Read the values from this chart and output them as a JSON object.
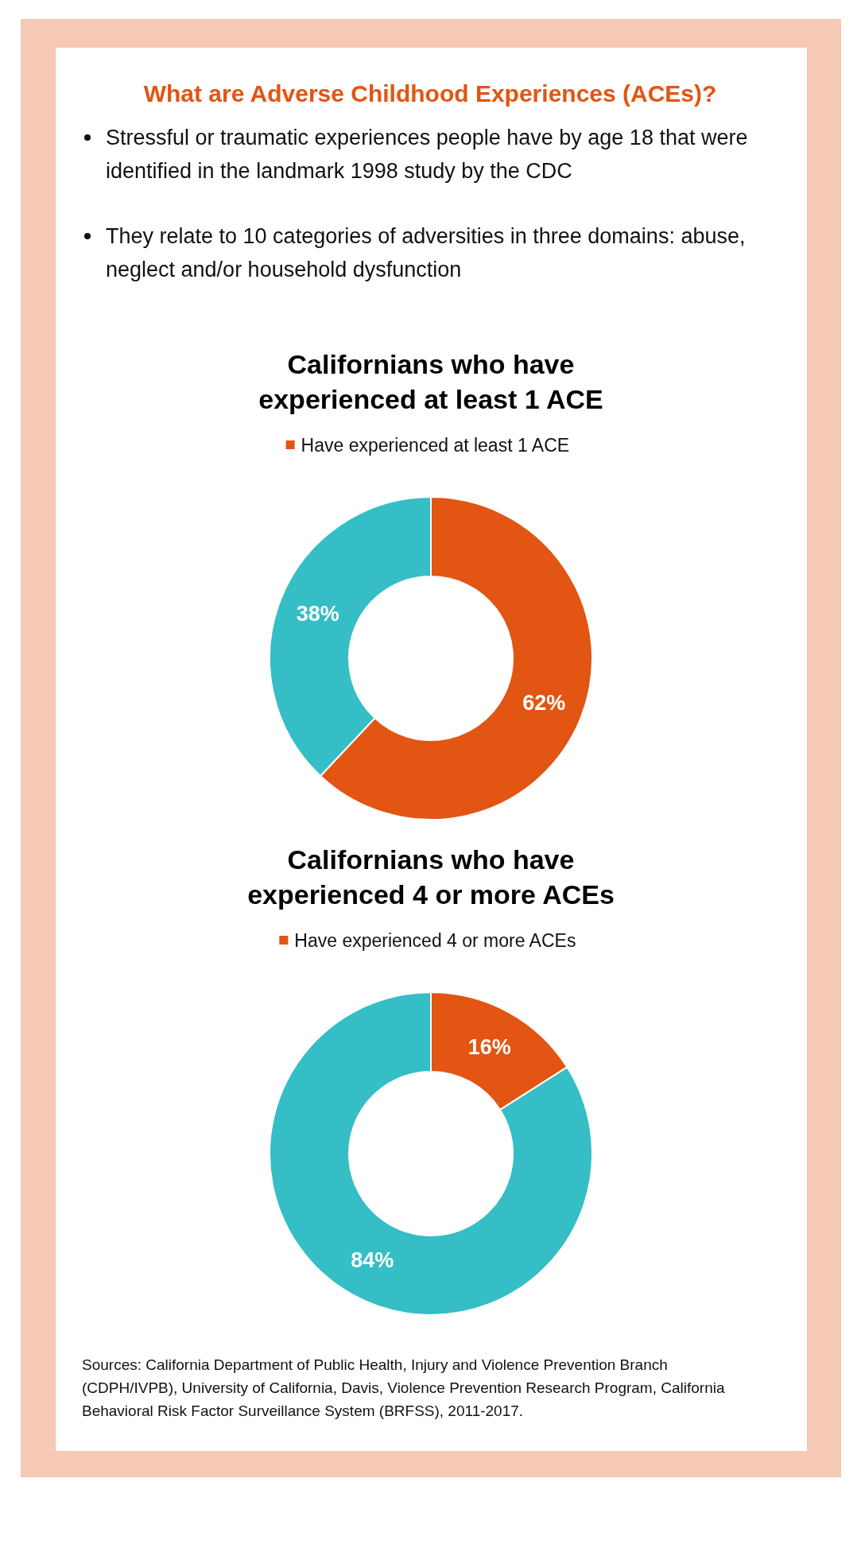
{
  "chart_data": [
    {
      "type": "other",
      "title": "What are Adverse Childhood Experiences (ACEs)?",
      "annotations": [
        "Stressful or traumatic experiences people have by age 18 that were identified in the landmark 1998 study by the CDC",
        "They relate to 10 categories of adversities in three domains: abuse, neglect and/or household dysfunction"
      ]
    },
    {
      "type": "donut",
      "title": "Californians who have experienced at least 1 ACE",
      "categories": [
        "Have experienced at least 1 ACE",
        null
      ],
      "values": [
        62,
        38
      ],
      "colors": [
        "#e25512",
        "#35bec6"
      ],
      "value_labels": [
        "62%",
        "38%"
      ],
      "legend": "top"
    },
    {
      "type": "donut",
      "title": "Californians who have experienced 4 or more ACEs",
      "categories": [
        "Have experienced 4 or more ACEs",
        null
      ],
      "values": [
        16,
        84
      ],
      "colors": [
        "#e25512",
        "#35bec6"
      ],
      "value_labels": [
        "16%",
        "84%"
      ],
      "legend": "top",
      "annotations": [
        "Sources: California Department of Public Health, Injury and Violence Prevention Branch (CDPH/IVPB), University of California, Davis, Violence Prevention Research Program, California Behavioral Risk Factor Surveillance System (BRFSS), 2011-2017."
      ]
    }
  ]
}
